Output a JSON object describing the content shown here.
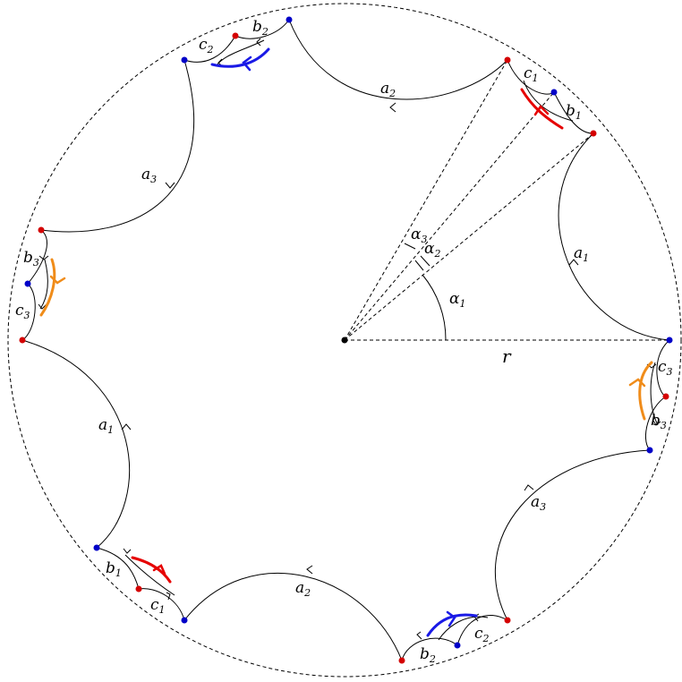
{
  "diagram": {
    "edge_labels": [
      {
        "id": "a2-top",
        "base": "a",
        "sub": "2"
      },
      {
        "id": "a1-right",
        "base": "a",
        "sub": "1"
      },
      {
        "id": "a3-upper-left",
        "base": "a",
        "sub": "3"
      },
      {
        "id": "a1-left",
        "base": "a",
        "sub": "1"
      },
      {
        "id": "a2-bottom",
        "base": "a",
        "sub": "2"
      },
      {
        "id": "a3-lower-right",
        "base": "a",
        "sub": "3"
      },
      {
        "id": "c1-top-right",
        "base": "c",
        "sub": "1"
      },
      {
        "id": "b1-top-right",
        "base": "b",
        "sub": "1"
      },
      {
        "id": "c2-top",
        "base": "c",
        "sub": "2"
      },
      {
        "id": "b2-top",
        "base": "b",
        "sub": "2"
      },
      {
        "id": "b3-left",
        "base": "b",
        "sub": "3"
      },
      {
        "id": "c3-left",
        "base": "c",
        "sub": "3"
      },
      {
        "id": "c3-right",
        "base": "c",
        "sub": "3"
      },
      {
        "id": "b3-right",
        "base": "b",
        "sub": "3"
      },
      {
        "id": "b1-bottom-left",
        "base": "b",
        "sub": "1"
      },
      {
        "id": "c1-bottom-left",
        "base": "c",
        "sub": "1"
      },
      {
        "id": "c2-bottom",
        "base": "c",
        "sub": "2"
      },
      {
        "id": "b2-bottom",
        "base": "b",
        "sub": "2"
      }
    ],
    "angle_labels": [
      {
        "id": "alpha1",
        "base": "α",
        "sub": "1"
      },
      {
        "id": "alpha2",
        "base": "α",
        "sub": "2"
      },
      {
        "id": "alpha3",
        "base": "α",
        "sub": "3"
      }
    ],
    "radius_label": "r",
    "colors": {
      "vertex_red": "#d40000",
      "vertex_blue": "#0000c8",
      "arc_red": "#e60000",
      "arc_blue": "#1a1ae6",
      "arc_orange": "#f08c1a",
      "line": "#000000"
    }
  }
}
